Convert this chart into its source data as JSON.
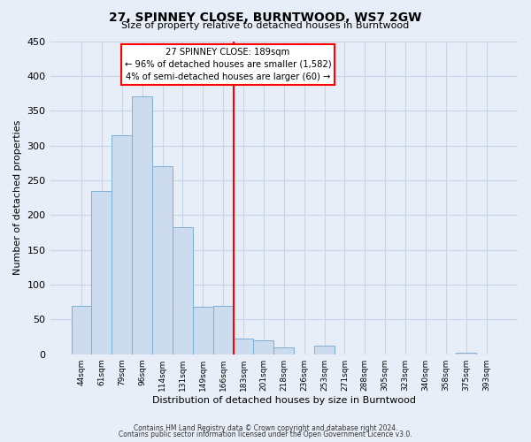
{
  "title": "27, SPINNEY CLOSE, BURNTWOOD, WS7 2GW",
  "subtitle": "Size of property relative to detached houses in Burntwood",
  "xlabel": "Distribution of detached houses by size in Burntwood",
  "ylabel": "Number of detached properties",
  "footer_line1": "Contains HM Land Registry data © Crown copyright and database right 2024.",
  "footer_line2": "Contains public sector information licensed under the Open Government Licence v3.0.",
  "bin_labels": [
    "44sqm",
    "61sqm",
    "79sqm",
    "96sqm",
    "114sqm",
    "131sqm",
    "149sqm",
    "166sqm",
    "183sqm",
    "201sqm",
    "218sqm",
    "236sqm",
    "253sqm",
    "271sqm",
    "288sqm",
    "305sqm",
    "323sqm",
    "340sqm",
    "358sqm",
    "375sqm",
    "393sqm"
  ],
  "bar_values": [
    70,
    235,
    315,
    370,
    270,
    183,
    68,
    70,
    22,
    20,
    10,
    0,
    12,
    0,
    0,
    0,
    0,
    0,
    0,
    2,
    0
  ],
  "bar_color": "#ccdcee",
  "bar_edge_color": "#7bafd4",
  "vline_color": "red",
  "vline_x": 8,
  "ylim": [
    0,
    450
  ],
  "yticks": [
    0,
    50,
    100,
    150,
    200,
    250,
    300,
    350,
    400,
    450
  ],
  "annotation_title": "27 SPINNEY CLOSE: 189sqm",
  "annotation_line1": "← 96% of detached houses are smaller (1,582)",
  "annotation_line2": "4% of semi-detached houses are larger (60) →",
  "background_color": "#e8eef8",
  "grid_color": "#c8d4e8"
}
